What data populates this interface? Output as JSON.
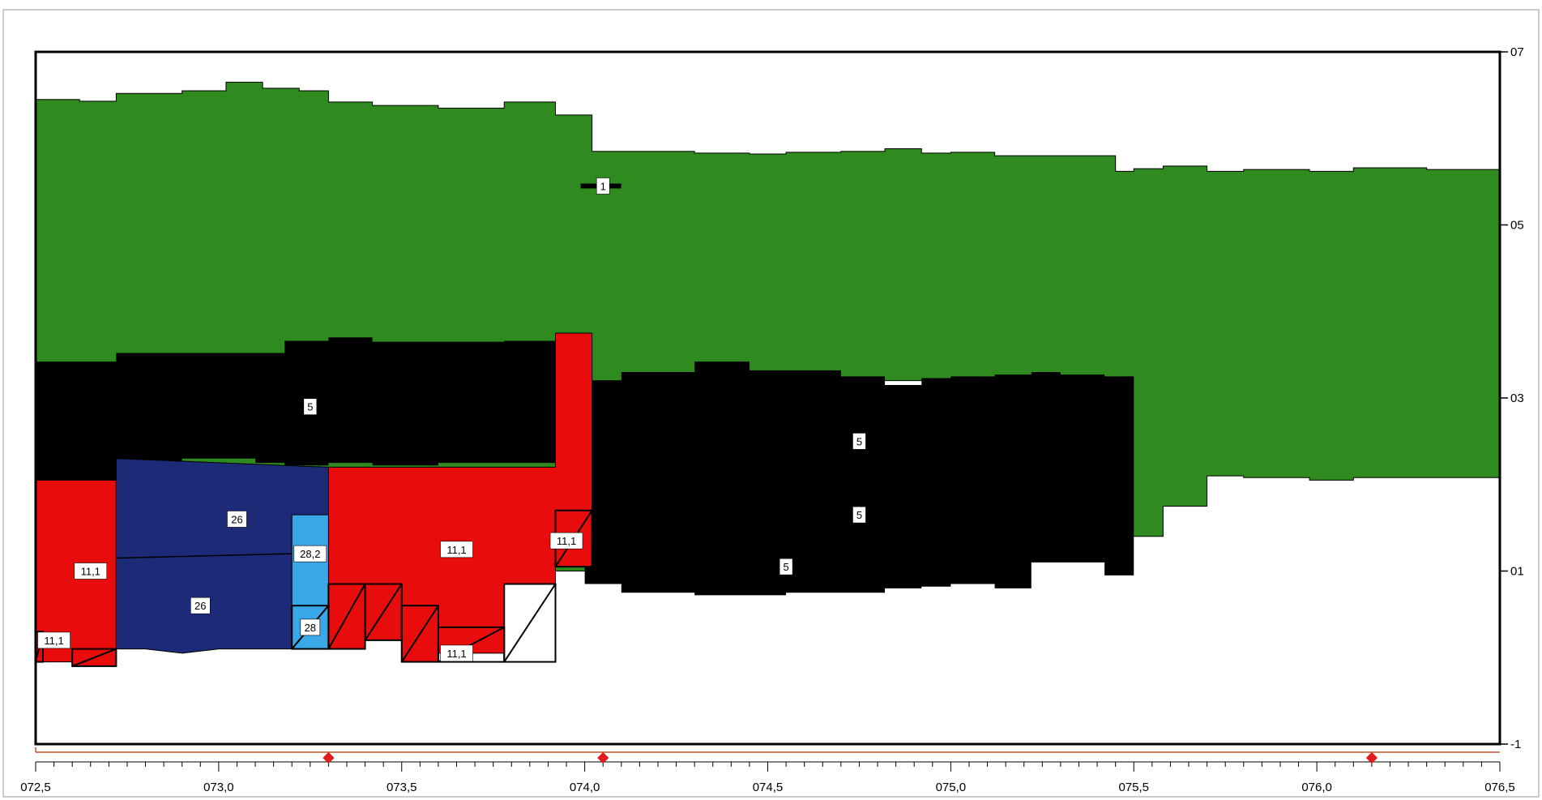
{
  "chart_data": {
    "type": "area",
    "title": "",
    "xlabel": "",
    "ylabel": "",
    "xlim": [
      72.5,
      76.5
    ],
    "ylim": [
      -1,
      7
    ],
    "grid": false,
    "x_tick_labels": [
      {
        "value": 72.5,
        "label": "072,5"
      },
      {
        "value": 73.0,
        "label": "073,0"
      },
      {
        "value": 73.5,
        "label": "073,5"
      },
      {
        "value": 74.0,
        "label": "074,0"
      },
      {
        "value": 74.5,
        "label": "074,5"
      },
      {
        "value": 75.0,
        "label": "075,0"
      },
      {
        "value": 75.5,
        "label": "075,5"
      },
      {
        "value": 76.0,
        "label": "076,0"
      },
      {
        "value": 76.5,
        "label": "076,5"
      }
    ],
    "y_tick_labels": [
      {
        "value": 7,
        "label": "07"
      },
      {
        "value": 5,
        "label": "05"
      },
      {
        "value": 3,
        "label": "03"
      },
      {
        "value": 1,
        "label": "01"
      },
      {
        "value": -1,
        "label": "-1"
      }
    ],
    "colors": {
      "green": "#2f8a1f",
      "black": "#000000",
      "red": "#e80c0c",
      "navy": "#1c2a78",
      "lightblue": "#3aa8e8",
      "marker": "#e21b1b",
      "axis_strip": "#c0502a"
    },
    "layers": [
      {
        "name": "1",
        "color": "green",
        "x": [
          72.5,
          72.62,
          72.72,
          72.9,
          73.02,
          73.12,
          73.22,
          73.3,
          73.42,
          73.6,
          73.78,
          73.92,
          74.02,
          74.1,
          74.3,
          74.45,
          74.55,
          74.7,
          74.82,
          74.92,
          75.0,
          75.12,
          75.22,
          75.45,
          75.5,
          75.58,
          75.7,
          75.8,
          75.98,
          76.1,
          76.2,
          76.3,
          76.5
        ],
        "top": [
          6.45,
          6.43,
          6.52,
          6.55,
          6.65,
          6.58,
          6.55,
          6.42,
          6.38,
          6.35,
          6.42,
          6.27,
          5.85,
          5.85,
          5.83,
          5.82,
          5.84,
          5.85,
          5.88,
          5.83,
          5.84,
          5.8,
          5.8,
          5.62,
          5.65,
          5.68,
          5.62,
          5.64,
          5.62,
          5.66,
          5.66,
          5.64,
          5.64
        ],
        "bottom": [
          1.0,
          1.0,
          1.0,
          1.0,
          1.0,
          1.0,
          1.0,
          1.0,
          1.0,
          1.0,
          1.0,
          1.0,
          3.2,
          3.2,
          3.2,
          3.2,
          3.2,
          3.2,
          3.2,
          3.2,
          3.2,
          3.2,
          3.2,
          1.4,
          1.4,
          1.75,
          2.1,
          2.08,
          2.05,
          2.08,
          2.08,
          2.08,
          2.08
        ]
      },
      {
        "name": "5",
        "color": "black",
        "x": [
          72.5,
          72.72,
          72.9,
          73.1,
          73.18,
          73.3,
          73.42,
          73.6,
          73.78,
          73.92,
          74.0,
          74.1,
          74.3,
          74.45,
          74.55,
          74.7,
          74.82,
          74.92,
          75.0,
          75.12,
          75.22,
          75.3,
          75.42,
          75.5
        ],
        "top": [
          3.42,
          3.52,
          3.52,
          3.52,
          3.66,
          3.7,
          3.65,
          3.65,
          3.66,
          3.67,
          3.2,
          3.3,
          3.42,
          3.32,
          3.32,
          3.25,
          3.15,
          3.23,
          3.25,
          3.27,
          3.3,
          3.27,
          3.25,
          3.28
        ],
        "bottom": [
          2.05,
          2.05,
          2.3,
          2.25,
          2.22,
          2.25,
          2.22,
          2.25,
          2.25,
          2.2,
          0.85,
          0.75,
          0.72,
          0.72,
          0.75,
          0.75,
          0.8,
          0.82,
          0.85,
          0.8,
          1.1,
          1.1,
          0.95,
          0.95
        ]
      },
      {
        "name": "11,1",
        "color": "red",
        "segments": [
          [
            72.5,
            2.05,
            0.3
          ],
          [
            73.3,
            2.2,
            0.3
          ],
          [
            73.92,
            3.75,
            1.1
          ]
        ]
      },
      {
        "name": "26",
        "color": "navy",
        "x_range": [
          72.72,
          73.3
        ],
        "top": 2.3,
        "bottom": 0.1
      },
      {
        "name": "28,2",
        "color": "lightblue",
        "x_range": [
          73.2,
          73.3
        ],
        "top": 1.65,
        "bottom": 0.1
      },
      {
        "name": "28",
        "color": "lightblue",
        "x_range": [
          73.2,
          73.3
        ],
        "top": 0.6,
        "bottom": 0.1
      }
    ],
    "segment_labels": [
      {
        "label": "1",
        "x": 74.05,
        "y": 5.45
      },
      {
        "label": "5",
        "x": 73.25,
        "y": 2.9
      },
      {
        "label": "5",
        "x": 74.75,
        "y": 2.5
      },
      {
        "label": "5",
        "x": 74.75,
        "y": 1.65
      },
      {
        "label": "5",
        "x": 74.55,
        "y": 1.05
      },
      {
        "label": "26",
        "x": 73.05,
        "y": 1.6
      },
      {
        "label": "26",
        "x": 72.95,
        "y": 0.6
      },
      {
        "label": "28,2",
        "x": 73.25,
        "y": 1.2
      },
      {
        "label": "28",
        "x": 73.25,
        "y": 0.35
      },
      {
        "label": "11,1",
        "x": 72.65,
        "y": 1.0
      },
      {
        "label": "11,1",
        "x": 72.55,
        "y": 0.2
      },
      {
        "label": "11,1",
        "x": 73.65,
        "y": 1.25
      },
      {
        "label": "11,1",
        "x": 73.65,
        "y": 0.05
      },
      {
        "label": "11,1",
        "x": 73.95,
        "y": 1.35
      }
    ],
    "markers": [
      {
        "x": 73.3,
        "y": -1.12
      },
      {
        "x": 74.05,
        "y": -1.12
      },
      {
        "x": 76.15,
        "y": -1.12
      }
    ]
  }
}
